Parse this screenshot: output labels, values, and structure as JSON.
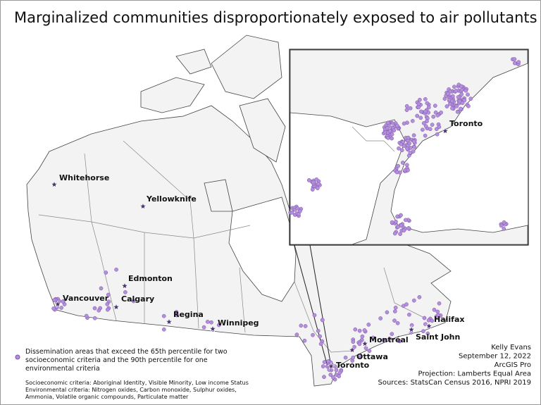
{
  "title": "Marginalized communities disproportionately exposed to air pollutants",
  "cities": [
    "Whitehorse",
    "Yellowknife",
    "Edmonton",
    "Vancouver",
    "Calgary",
    "Regina",
    "Winnipeg",
    "Montréal",
    "Ottawa",
    "Toronto",
    "Saint John",
    "Halifax"
  ],
  "inset": {
    "cities": [
      "Toronto"
    ]
  },
  "legend": {
    "lines": [
      "Dissemination areas that exceed the 65th percentile for two",
      "socioeconomic criteria and the 90th percentile for one",
      "environmental criteria"
    ]
  },
  "notes": [
    "Socioeconomic criteria: Aboriginal Identity, Visible Minority, Low income Status",
    "Environmental criteria: Nitrogen oxides, Carbon monoxide, Sulphur oxides,",
    "Ammonia, Volatile organic compounds, Particulate matter"
  ],
  "credits": [
    "Kelly Evans",
    "September 12, 2022",
    "ArcGIS Pro",
    "Projection: Lamberts Equal Area",
    "Sources: StatsCan Census 2016, NPRI 2019"
  ]
}
